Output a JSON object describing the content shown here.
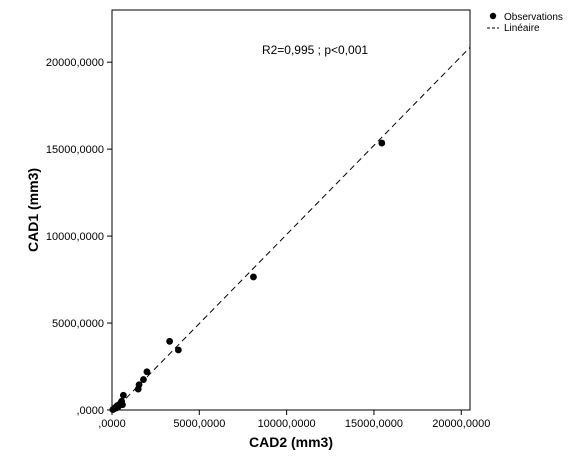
{
  "chart_data": {
    "type": "scatter",
    "xlabel": "CAD2 (mm3)",
    "ylabel": "CAD1 (mm3)",
    "xlim": [
      0,
      20500000
    ],
    "ylim": [
      0,
      23000000
    ],
    "x_ticks": [
      0,
      5000000,
      10000000,
      15000000,
      20000000
    ],
    "y_ticks": [
      0,
      5000000,
      10000000,
      15000000,
      20000000
    ],
    "x_tick_labels": [
      ",0000",
      "5000,0000",
      "10000,0000",
      "15000,0000",
      "20000,0000"
    ],
    "y_tick_labels": [
      ",0000",
      "5000,0000",
      "10000,0000",
      "15000,0000",
      "20000,0000"
    ],
    "grid": false,
    "annotation": "R2=0,995 ; p<0,001",
    "legend": {
      "placement": "top-right-outside",
      "items": [
        {
          "label": "Observations",
          "marker": "dot"
        },
        {
          "label": "Linéaire",
          "marker": "dashed-line"
        }
      ]
    },
    "series": [
      {
        "name": "Observations",
        "type": "scatter",
        "color": "#000000",
        "points": [
          {
            "x": 50000,
            "y": 20000
          },
          {
            "x": 100000,
            "y": 60000
          },
          {
            "x": 150000,
            "y": 100000
          },
          {
            "x": 200000,
            "y": 150000
          },
          {
            "x": 250000,
            "y": 120000
          },
          {
            "x": 300000,
            "y": 250000
          },
          {
            "x": 350000,
            "y": 180000
          },
          {
            "x": 400000,
            "y": 300000
          },
          {
            "x": 500000,
            "y": 400000
          },
          {
            "x": 550000,
            "y": 500000
          },
          {
            "x": 600000,
            "y": 300000
          },
          {
            "x": 650000,
            "y": 850000
          },
          {
            "x": 1500000,
            "y": 1200000
          },
          {
            "x": 1550000,
            "y": 1450000
          },
          {
            "x": 1800000,
            "y": 1750000
          },
          {
            "x": 2000000,
            "y": 2200000
          },
          {
            "x": 3300000,
            "y": 3950000
          },
          {
            "x": 3800000,
            "y": 3450000
          },
          {
            "x": 8100000,
            "y": 7650000
          },
          {
            "x": 15450000,
            "y": 15350000
          }
        ]
      },
      {
        "name": "Linéaire",
        "type": "line",
        "style": "dashed",
        "color": "#000000",
        "x": [
          0,
          20500000
        ],
        "y": [
          -150000,
          20850000
        ]
      }
    ]
  }
}
